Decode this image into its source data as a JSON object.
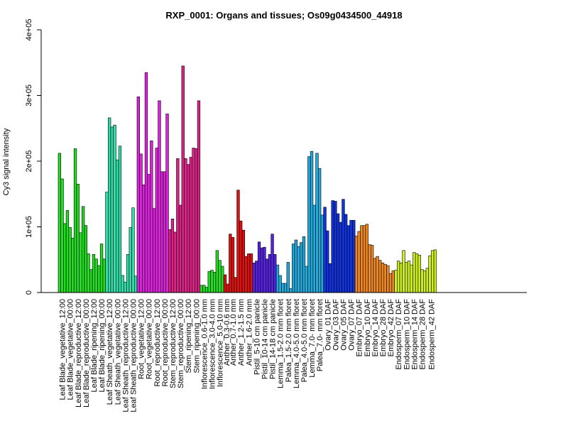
{
  "chart_data": {
    "type": "bar",
    "title": "RXP_0001: Organs and tissues; Os09g0434500_44918",
    "ylabel": "Cy3 signal intensity",
    "xlabel": "",
    "ylim": [
      0,
      400000
    ],
    "yticks": [
      0,
      100000,
      200000,
      300000,
      400000
    ],
    "ytick_labels": [
      "0",
      "1e+05",
      "2e+05",
      "3e+05",
      "4e+05"
    ],
    "grid": false,
    "legend": "none",
    "groups": [
      {
        "label": "Leaf Blade_vegetative_12:00",
        "color": "#22dd22",
        "values": [
          212000,
          173000,
          105000
        ]
      },
      {
        "label": "Leaf Blade_vegetative_00:00",
        "color": "#22dd22",
        "values": [
          125000,
          99000,
          83000
        ]
      },
      {
        "label": "Leaf Blade_reproductive_12:00",
        "color": "#22dd22",
        "values": [
          219000,
          165000,
          91000
        ]
      },
      {
        "label": "Leaf Blade_reproductive_00:00",
        "color": "#22dd22",
        "values": [
          131000,
          102000,
          59000
        ]
      },
      {
        "label": "Leaf Blade_ripening_12:00",
        "color": "#22dd22",
        "values": [
          35000,
          58000,
          51000
        ]
      },
      {
        "label": "Leaf Blade_ripening_00:00",
        "color": "#22dd22",
        "values": [
          41000,
          74000,
          51000
        ]
      },
      {
        "label": "Leaf Sheath_vegetative_12:00",
        "color": "#33ddaa",
        "values": [
          153000,
          266000,
          252000
        ]
      },
      {
        "label": "Leaf Sheath_vegetative_00:00",
        "color": "#33ddaa",
        "values": [
          255000,
          202000,
          223000
        ]
      },
      {
        "label": "Leaf Sheath_reproductive_12:00",
        "color": "#33ddaa",
        "values": [
          26000,
          16000,
          58000
        ]
      },
      {
        "label": "Leaf Sheath_reproductive_00:00",
        "color": "#33ddaa",
        "values": [
          99000,
          129000,
          25000
        ]
      },
      {
        "label": "Root_vegetative_12:00",
        "color": "#dd22dd",
        "values": [
          298000,
          211000,
          164000
        ]
      },
      {
        "label": "Root_vegetative_00:00",
        "color": "#dd22dd",
        "values": [
          335000,
          180000,
          231000
        ]
      },
      {
        "label": "Root_reproductive_12:00",
        "color": "#dd22dd",
        "values": [
          128000,
          220000,
          292000
        ]
      },
      {
        "label": "Root_reproductive_00:00",
        "color": "#dd22dd",
        "values": [
          184000,
          184000,
          272000
        ]
      },
      {
        "label": "Stem_reproductive_12:00",
        "color": "#dd2288",
        "values": [
          96000,
          112000,
          92000
        ]
      },
      {
        "label": "Stem_reproductive_00:00",
        "color": "#dd2288",
        "values": [
          204000,
          133000,
          345000
        ]
      },
      {
        "label": "Stem_ripening_12:00",
        "color": "#dd2288",
        "values": [
          204000,
          195000,
          206000
        ]
      },
      {
        "label": "Stem_ripening_00:00",
        "color": "#dd2288",
        "values": [
          220000,
          219000,
          292000
        ]
      },
      {
        "label": "Inflorescence_0.6-1.0 mm",
        "color": "#22dd22",
        "values": [
          11000,
          11000,
          8000
        ]
      },
      {
        "label": "Inflorescence_3.0-4.0 mm",
        "color": "#22dd22",
        "values": [
          32000,
          34000,
          31000
        ]
      },
      {
        "label": "Inflorescence_5.0-10 mm",
        "color": "#22dd22",
        "values": [
          64000,
          49000,
          40000
        ]
      },
      {
        "label": "Anther_0.3-0.6 mm",
        "color": "#dd1111",
        "values": [
          27000,
          13000
        ]
      },
      {
        "label": "Anther_0.7-1.0 mm",
        "color": "#dd1111",
        "values": [
          89000,
          84000,
          23000
        ]
      },
      {
        "label": "Anther_1.2-1.5 mm",
        "color": "#dd1111",
        "values": [
          156000,
          109000,
          95000
        ]
      },
      {
        "label": "Anther_1.6-2.0 mm",
        "color": "#dd1111",
        "values": [
          55000,
          59000,
          59000
        ]
      },
      {
        "label": "Pistil_5-10 cm panicle",
        "color": "#5522dd",
        "values": [
          45000,
          48000,
          77000
        ]
      },
      {
        "label": "Pistil_10-14 cm panicle",
        "color": "#5522dd",
        "values": [
          68000,
          69000,
          51000
        ]
      },
      {
        "label": "Pistil_14-18 cm panicle",
        "color": "#5522dd",
        "values": [
          58000,
          89000,
          58000
        ]
      },
      {
        "label": "Lemma_1.5-2.0 mm floret",
        "color": "#22aadd",
        "values": [
          42000,
          26000,
          14000
        ]
      },
      {
        "label": "Palea_1.5-2.0 mm floret",
        "color": "#22aadd",
        "values": [
          14000,
          46000,
          6000
        ]
      },
      {
        "label": "Lemma_4.0-5.0 mm floret",
        "color": "#22aadd",
        "values": [
          74000,
          80000,
          70000
        ]
      },
      {
        "label": "Palea_4.0-5.0 mm floret",
        "color": "#22aadd",
        "values": [
          76000,
          85000,
          40000
        ]
      },
      {
        "label": "Lemma_7.0- mm floret",
        "color": "#22aadd",
        "values": [
          207000,
          215000,
          133000
        ]
      },
      {
        "label": "Palea_7.0- mm floret",
        "color": "#22aadd",
        "values": [
          212000,
          189000,
          118000
        ]
      },
      {
        "label": "Ovary_01 DAF",
        "color": "#1133dd",
        "values": [
          130000,
          94000,
          44000
        ]
      },
      {
        "label": "Ovary_03 DAF",
        "color": "#1133dd",
        "values": [
          140000,
          139000,
          120000
        ]
      },
      {
        "label": "Ovary_05 DAF",
        "color": "#1133dd",
        "values": [
          107000,
          142000,
          119000
        ]
      },
      {
        "label": "Ovary_07 DAF",
        "color": "#1133dd",
        "values": [
          102000,
          110000,
          110000
        ]
      },
      {
        "label": "Embryo_07 DAF",
        "color": "#ee8822",
        "values": [
          86000,
          93000,
          102000
        ]
      },
      {
        "label": "Embryo_10 DAF",
        "color": "#ee8822",
        "values": [
          102000,
          104000,
          73000
        ]
      },
      {
        "label": "Embryo_14 DAF",
        "color": "#ee8822",
        "values": [
          72000,
          52000,
          55000
        ]
      },
      {
        "label": "Embryo_28 DAF",
        "color": "#ee8822",
        "values": [
          49000,
          45000,
          43000
        ]
      },
      {
        "label": "Embryo_42 DAF",
        "color": "#ee8822",
        "values": [
          41000,
          29000,
          33000
        ]
      },
      {
        "label": "Endosperm_07 DAF",
        "color": "#ccee22",
        "values": [
          34000,
          48000,
          45000
        ]
      },
      {
        "label": "Endosperm_10 DAF",
        "color": "#ccee22",
        "values": [
          64000,
          46000,
          48000
        ]
      },
      {
        "label": "Endosperm_14 DAF",
        "color": "#ccee22",
        "values": [
          42000,
          61000,
          59000
        ]
      },
      {
        "label": "Endosperm_28 DAF",
        "color": "#ccee22",
        "values": [
          57000,
          35000,
          33000
        ]
      },
      {
        "label": "Endosperm_42 DAF",
        "color": "#ccee22",
        "values": [
          37000,
          56000,
          64000,
          65000
        ]
      }
    ]
  }
}
